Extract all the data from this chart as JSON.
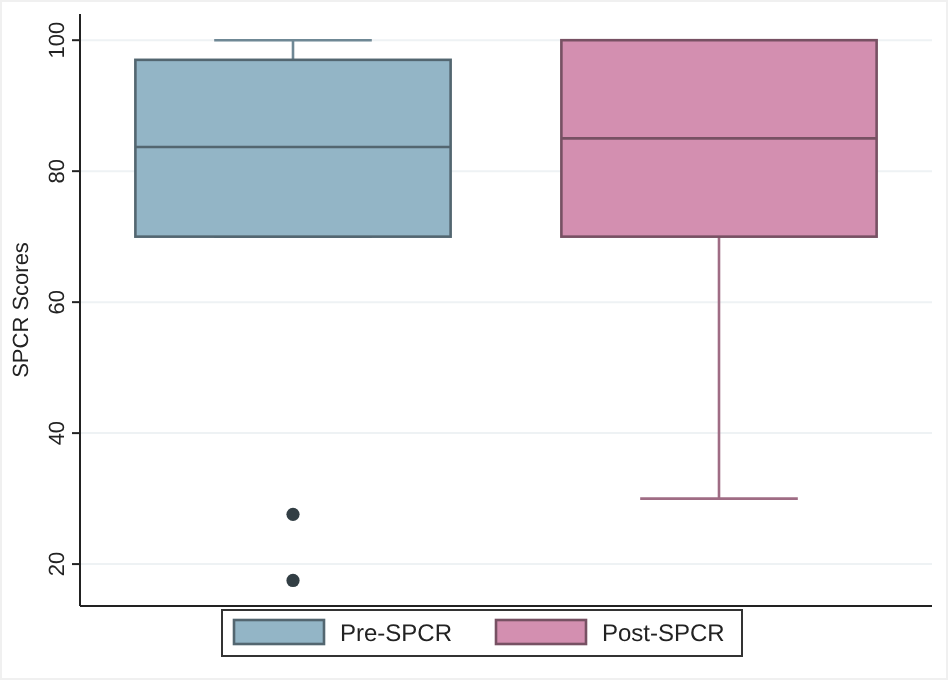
{
  "chart_data": {
    "type": "box",
    "ylabel": "SPCR Scores",
    "categories": [
      null
    ],
    "ylim": [
      13.6,
      104
    ],
    "yticks": [
      20,
      40,
      60,
      80,
      100
    ],
    "grid": "y",
    "legend": "bottom",
    "series": [
      {
        "name": "Pre-SPCR",
        "color": "#93b5c6",
        "boxes": [
          {
            "low": 70,
            "q1": 70,
            "median": 83.7,
            "q3": 97,
            "high": 100,
            "outliers": [
              27.6,
              17.5
            ]
          }
        ]
      },
      {
        "name": "Post-SPCR",
        "color": "#d38fb0",
        "boxes": [
          {
            "low": 30,
            "q1": 70,
            "median": 85,
            "q3": 100,
            "high": 100
          }
        ]
      }
    ]
  }
}
